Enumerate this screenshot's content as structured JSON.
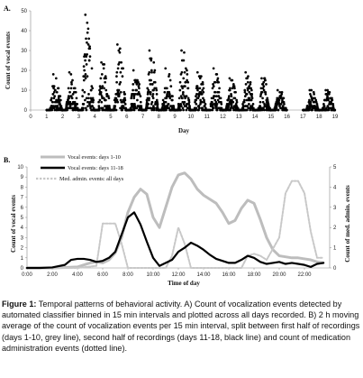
{
  "chart_data": [
    {
      "type": "scatter",
      "panel_label": "A.",
      "xlabel": "Day",
      "ylabel": "Count of vocal events",
      "xlim": [
        0,
        19
      ],
      "ylim": [
        0,
        50
      ],
      "x_ticks": [
        "0",
        "1",
        "2",
        "3",
        "4",
        "5",
        "6",
        "7",
        "8",
        "9",
        "10",
        "11",
        "12",
        "13",
        "14",
        "15",
        "16",
        "17",
        "18",
        "19"
      ],
      "y_ticks": [
        "0",
        "10",
        "20",
        "30",
        "40",
        "50"
      ],
      "gap_days": [
        16,
        17
      ],
      "day_profile": [
        {
          "day": 1,
          "peak": 18
        },
        {
          "day": 2,
          "peak": 19
        },
        {
          "day": 3,
          "peak": 48
        },
        {
          "day": 4,
          "peak": 24
        },
        {
          "day": 5,
          "peak": 33
        },
        {
          "day": 6,
          "peak": 20
        },
        {
          "day": 7,
          "peak": 30
        },
        {
          "day": 8,
          "peak": 21
        },
        {
          "day": 9,
          "peak": 30
        },
        {
          "day": 10,
          "peak": 19
        },
        {
          "day": 11,
          "peak": 21
        },
        {
          "day": 12,
          "peak": 16
        },
        {
          "day": 13,
          "peak": 19
        },
        {
          "day": 14,
          "peak": 16
        },
        {
          "day": 15,
          "peak": 10
        },
        {
          "day": 17,
          "peak": 10
        },
        {
          "day": 18,
          "peak": 10
        }
      ]
    },
    {
      "type": "line",
      "panel_label": "B.",
      "xlabel": "Time of day",
      "ylabel": "Count of vocal events",
      "y2label": "Count of med. admin. events",
      "x_ticks": [
        "0:00",
        "2:00",
        "4:00",
        "6:00",
        "8:00",
        "10:00",
        "12:00",
        "14:00",
        "16:00",
        "18:00",
        "20:00",
        "22:00"
      ],
      "y_ticks": [
        "0",
        "1",
        "2",
        "3",
        "4",
        "5",
        "6",
        "7",
        "8",
        "9",
        "10"
      ],
      "y2_ticks": [
        "0",
        "1",
        "2",
        "3",
        "4",
        "5"
      ],
      "xlim": [
        0,
        24
      ],
      "ylim": [
        0,
        10
      ],
      "y2lim": [
        0,
        5
      ],
      "legend": [
        "Vocal events: days 1-10",
        "Vocal events: days 11-18",
        "Med. admin. events: all days"
      ],
      "series": [
        {
          "name": "Vocal events: days 1-10",
          "color": "#bdbdbd",
          "axis": "left",
          "x": [
            0,
            1,
            2,
            3,
            4,
            4.5,
            5,
            5.5,
            6,
            6.5,
            7,
            7.5,
            8,
            8.5,
            9,
            9.5,
            10,
            10.5,
            11,
            11.5,
            12,
            12.5,
            13,
            13.5,
            14,
            14.5,
            15,
            15.5,
            16,
            16.5,
            17,
            17.5,
            18,
            18.5,
            19,
            19.5,
            20,
            20.5,
            21,
            21.5,
            22,
            22.5,
            23,
            23.5
          ],
          "y": [
            0,
            0,
            0,
            0.05,
            0.1,
            0.3,
            0.5,
            0.6,
            0.5,
            0.8,
            1.5,
            3.0,
            5.5,
            7.0,
            7.8,
            7.3,
            5.0,
            4.0,
            6.0,
            8.0,
            9.2,
            9.4,
            8.8,
            7.8,
            7.2,
            6.8,
            6.4,
            5.5,
            4.4,
            4.7,
            5.9,
            6.7,
            6.4,
            4.8,
            3.0,
            1.8,
            1.2,
            1.1,
            1.0,
            1.0,
            0.9,
            0.8,
            0.6,
            0.5
          ]
        },
        {
          "name": "Vocal events: days 11-18",
          "color": "#000000",
          "axis": "left",
          "x": [
            0,
            1,
            2,
            3,
            3.5,
            4,
            4.5,
            5,
            5.5,
            6,
            6.5,
            7,
            7.5,
            8,
            8.5,
            9,
            9.5,
            10,
            10.5,
            11,
            11.5,
            12,
            12.5,
            13,
            13.5,
            14,
            14.5,
            15,
            15.5,
            16,
            16.5,
            17,
            17.5,
            18,
            18.5,
            19,
            19.5,
            20,
            20.5,
            21,
            21.5,
            22,
            22.5,
            23,
            23.5
          ],
          "y": [
            0,
            0,
            0.05,
            0.3,
            0.8,
            0.9,
            0.9,
            0.8,
            0.6,
            0.7,
            1.0,
            1.6,
            3.3,
            5.0,
            5.5,
            4.3,
            2.6,
            1.0,
            0.2,
            0.5,
            0.8,
            1.6,
            2.0,
            2.5,
            2.2,
            1.8,
            1.3,
            0.9,
            0.7,
            0.5,
            0.5,
            0.8,
            1.2,
            1.0,
            0.6,
            0.4,
            0.5,
            0.6,
            0.4,
            0.5,
            0.4,
            0.3,
            0.1,
            0.4,
            0.5
          ]
        },
        {
          "name": "Med. admin. events: all days",
          "color": "#c8c8c8",
          "axis": "right",
          "x": [
            0,
            2,
            4,
            5.5,
            6,
            7,
            7.5,
            8,
            9,
            10,
            11,
            11.5,
            12,
            12.5,
            13,
            14,
            15,
            16,
            17,
            17.5,
            18,
            18.5,
            19,
            20,
            20.5,
            21,
            21.5,
            22,
            22.5,
            23,
            23.5
          ],
          "y": [
            0,
            0,
            0,
            0.1,
            2.2,
            2.2,
            1.2,
            0,
            0,
            0,
            0,
            0.6,
            2.0,
            1.2,
            0,
            0,
            0,
            0,
            0,
            0.6,
            0.7,
            0.6,
            0.4,
            1.5,
            3.7,
            4.3,
            4.3,
            3.7,
            1.8,
            0.5,
            0.5
          ]
        }
      ]
    }
  ],
  "caption": {
    "lead": "Figure 1:",
    "text": " Temporal patterns of behavioral activity. A) Count of vocalization events detected by automated classifier binned in 15 min intervals and plotted across all days recorded. B) 2 h moving average of the count of vocalization events per 15 min interval, split between first half of recordings (days 1-10, grey line), second half of recordings (days 11-18, black line) and count of medication administration events (dotted line)."
  }
}
